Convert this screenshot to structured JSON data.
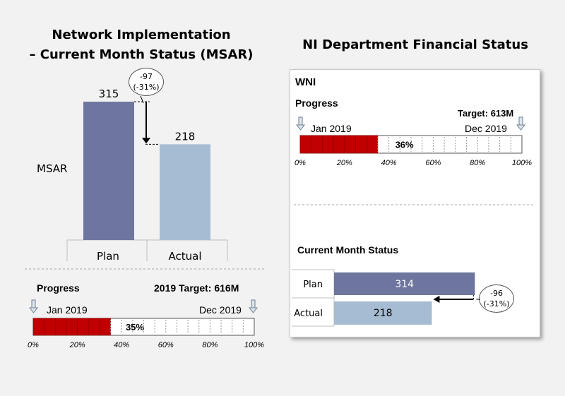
{
  "left": {
    "title_line1": "Network Implementation",
    "title_line2": "– Current Month Status (MSAR)",
    "chart": {
      "type": "bar",
      "categories": [
        "Plan",
        "Actual"
      ],
      "values": [
        315,
        218
      ],
      "ylabel": "MSAR",
      "delta_value": "-97",
      "delta_pct": "(-31%)",
      "colors": [
        "#6e759e",
        "#a6bcd2"
      ]
    },
    "progress": {
      "label": "Progress",
      "target": "2019 Target: 616M",
      "start_label": "Jan 2019",
      "end_label": "Dec 2019",
      "percent": 35,
      "percent_label": "35%",
      "ticks": [
        "0%",
        "20%",
        "40%",
        "60%",
        "80%",
        "100%"
      ]
    }
  },
  "right": {
    "title": "NI Department Financial Status",
    "org": "WNI",
    "progress": {
      "label": "Progress",
      "target": "Target: 613M",
      "start_label": "Jan 2019",
      "end_label": "Dec 2019",
      "percent": 36,
      "percent_label": "36%",
      "ticks": [
        "0%",
        "20%",
        "40%",
        "60%",
        "80%",
        "100%"
      ]
    },
    "current": {
      "label": "Current Month Status",
      "chart": {
        "type": "bar",
        "categories": [
          "Plan",
          "Actual"
        ],
        "values": [
          314,
          218
        ],
        "delta_value": "-96",
        "delta_pct": "(-31%)",
        "colors": [
          "#6e759e",
          "#a6bcd2"
        ]
      }
    }
  },
  "chart_data": [
    {
      "type": "bar",
      "title": "Network Implementation – Current Month Status (MSAR)",
      "categories": [
        "Plan",
        "Actual"
      ],
      "values": [
        315,
        218
      ],
      "ylabel": "MSAR",
      "annotations": [
        "-97",
        "(-31%)"
      ]
    },
    {
      "type": "bar",
      "title": "Current Month Status",
      "categories": [
        "Plan",
        "Actual"
      ],
      "values": [
        314,
        218
      ],
      "annotations": [
        "-96",
        "(-31%)"
      ]
    }
  ],
  "colors": {
    "plan": "#6e759e",
    "actual": "#a6bcd2",
    "progress_fill": "#c00000",
    "background": "#f2f2f2"
  }
}
